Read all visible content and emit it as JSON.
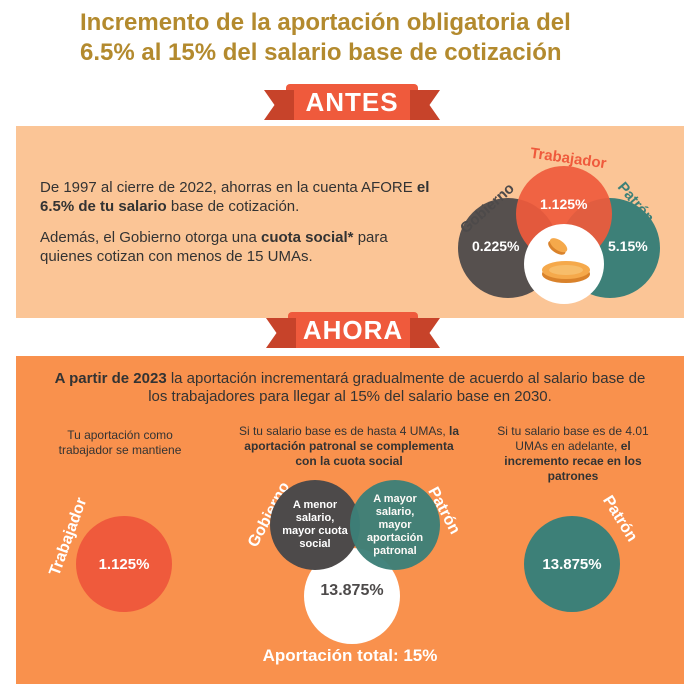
{
  "title": {
    "line1": "Incremento de la aportación obligatoria del",
    "line2": "6.5% al 15% del salario base de cotización"
  },
  "antes": {
    "ribbon": "ANTES",
    "text1_a": "De 1997 al cierre de 2022, ahorras en la cuenta AFORE ",
    "text1_b": "el 6.5% de tu salario",
    "text1_c": " base de cotización.",
    "text2_a": "Además, el Gobierno otorga una ",
    "text2_b": "cuota social*",
    "text2_c": " para quienes cotizan con menos de 15 UMAs.",
    "venn": {
      "trabajador_label": "Trabajador",
      "gobierno_label": "Gobierno",
      "patron_label": "Patrón",
      "trabajador_value": "1.125%",
      "gobierno_value": "0.225%",
      "patron_value": "5.15%"
    }
  },
  "ahora": {
    "ribbon": "AHORA",
    "intro_a": "A partir de 2023",
    "intro_b": " la aportación incrementará gradualmente de acuerdo al salario base de los trabajadores para llegar al 15% del salario base en 2030.",
    "col1": {
      "text": "Tu aportación como trabajador se mantiene",
      "label": "Trabajador",
      "value": "1.125%"
    },
    "col2": {
      "text_a": "Si tu salario base es de hasta 4 UMAs, ",
      "text_b": "la aportación patronal se complementa con la cuota social",
      "gobierno_label": "Gobierno",
      "patron_label": "Patrón",
      "gray_text": "A menor salario, mayor cuota social",
      "teal_text": "A mayor salario, mayor aportación patronal",
      "value": "13.875%"
    },
    "col3": {
      "text_a": "Si tu salario base es de 4.01 UMAs en adelante, ",
      "text_b": "el incremento recae en los patrones",
      "label": "Patrón",
      "value": "13.875%"
    },
    "total": "Aportación total: 15%"
  },
  "colors": {
    "gold": "#b38a2e",
    "red": "#ef5a3c",
    "teal": "#3d8078",
    "gray": "#4d4a4a",
    "peach": "#fbc596",
    "orange": "#f9914d"
  }
}
